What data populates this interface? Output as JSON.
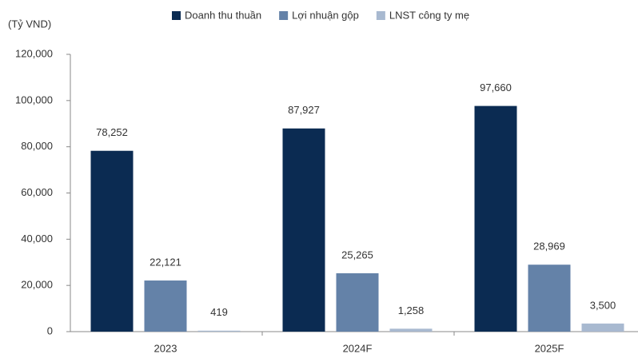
{
  "chart_data": {
    "type": "bar",
    "y_label": "(Tỷ VND)",
    "categories": [
      "2023",
      "2024F",
      "2025F"
    ],
    "series": [
      {
        "name": "Doanh thu thuần",
        "color": "#0b2b52",
        "values": [
          78252,
          87927,
          97660
        ],
        "value_labels": [
          "78,252",
          "87,927",
          "97,660"
        ]
      },
      {
        "name": "Lợi nhuận gộp",
        "color": "#6482a8",
        "values": [
          22121,
          25265,
          28969
        ],
        "value_labels": [
          "22,121",
          "25,265",
          "28,969"
        ]
      },
      {
        "name": "LNST công ty mẹ",
        "color": "#a8b9d0",
        "values": [
          419,
          1258,
          3500
        ],
        "value_labels": [
          "419",
          "1,258",
          "3,500"
        ]
      }
    ],
    "ylim": [
      0,
      120000
    ],
    "yticks": [
      0,
      {
        "value": 20000,
        "label": "20,000"
      },
      {
        "value": 40000,
        "label": "40,000"
      },
      {
        "value": 60000,
        "label": "60,000"
      },
      {
        "value": 80000,
        "label": "80,000"
      },
      {
        "value": 100000,
        "label": "100,000"
      },
      {
        "value": 120000,
        "label": "120,000"
      }
    ],
    "legend": "top"
  }
}
